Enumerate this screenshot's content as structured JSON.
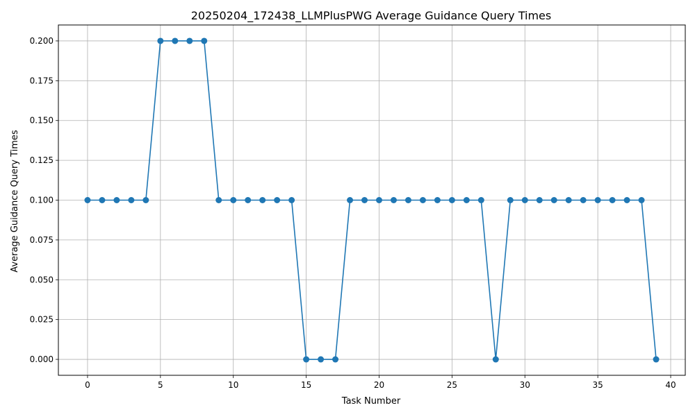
{
  "chart_data": {
    "type": "line",
    "title": "20250204_172438_LLMPlusPWG Average Guidance Query Times",
    "xlabel": "Task Number",
    "ylabel": "Average Guidance Query Times",
    "xlim": [
      -2,
      41
    ],
    "ylim": [
      -0.01,
      0.21
    ],
    "x_ticks": [
      0,
      5,
      10,
      15,
      20,
      25,
      30,
      35,
      40
    ],
    "x_tick_labels": [
      "0",
      "5",
      "10",
      "15",
      "20",
      "25",
      "30",
      "35",
      "40"
    ],
    "y_ticks": [
      0.0,
      0.025,
      0.05,
      0.075,
      0.1,
      0.125,
      0.15,
      0.175,
      0.2
    ],
    "y_tick_labels": [
      "0.000",
      "0.025",
      "0.050",
      "0.075",
      "0.100",
      "0.125",
      "0.150",
      "0.175",
      "0.200"
    ],
    "grid": true,
    "series": [
      {
        "color": "#1f77b4",
        "marker": "circle",
        "x": [
          0,
          1,
          2,
          3,
          4,
          5,
          6,
          7,
          8,
          9,
          10,
          11,
          12,
          13,
          14,
          15,
          16,
          17,
          18,
          19,
          20,
          21,
          22,
          23,
          24,
          25,
          26,
          27,
          28,
          29,
          30,
          31,
          32,
          33,
          34,
          35,
          36,
          37,
          38,
          39
        ],
        "values": [
          0.1,
          0.1,
          0.1,
          0.1,
          0.1,
          0.2,
          0.2,
          0.2,
          0.2,
          0.1,
          0.1,
          0.1,
          0.1,
          0.1,
          0.1,
          0.0,
          0.0,
          0.0,
          0.1,
          0.1,
          0.1,
          0.1,
          0.1,
          0.1,
          0.1,
          0.1,
          0.1,
          0.1,
          0.0,
          0.1,
          0.1,
          0.1,
          0.1,
          0.1,
          0.1,
          0.1,
          0.1,
          0.1,
          0.1,
          0.0
        ]
      }
    ]
  }
}
